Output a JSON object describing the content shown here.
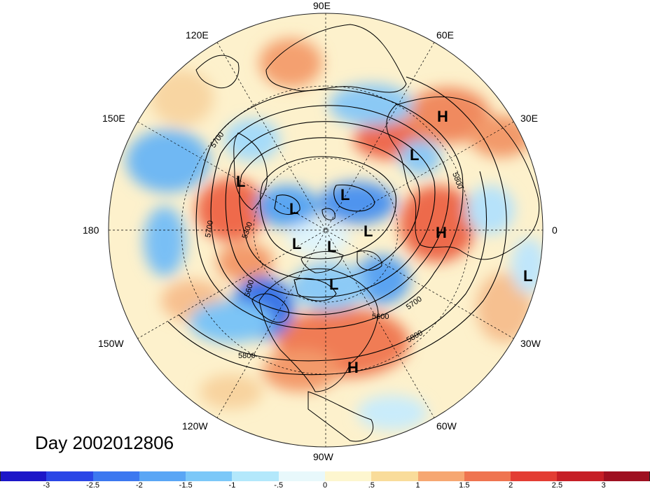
{
  "map": {
    "longitude_labels": [
      "90E",
      "60E",
      "120E",
      "30E",
      "150E",
      "180",
      "0",
      "150W",
      "30W",
      "120W",
      "60W",
      "90W"
    ],
    "height_contours": [
      "5700",
      "5800",
      "5700",
      "5300",
      "5600",
      "5600",
      "5700",
      "5800",
      "5800"
    ],
    "pressure_centers": [
      "H",
      "H",
      "H",
      "L",
      "L",
      "L",
      "L",
      "L",
      "L",
      "L",
      "L",
      "L"
    ],
    "colors": {
      "land_outline": "#000000",
      "ocean_bg": "#fdf3d2",
      "border": "#222222"
    }
  },
  "date_label": "Day 2002012806",
  "colorbar": {
    "ticks": [
      "-3",
      "-2.5",
      "-2",
      "-1.5",
      "-1",
      "-.5",
      "0",
      ".5",
      "1",
      "1.5",
      "2",
      "2.5",
      "3"
    ],
    "colors": [
      "#1c16c8",
      "#2a46e6",
      "#3c78f0",
      "#5aa6f5",
      "#7cc8f8",
      "#b3e8fb",
      "#e8f8fb",
      "#fdf6cf",
      "#f9dc9a",
      "#f6a772",
      "#ef7450",
      "#e33d33",
      "#c61f26",
      "#9e1020"
    ]
  }
}
